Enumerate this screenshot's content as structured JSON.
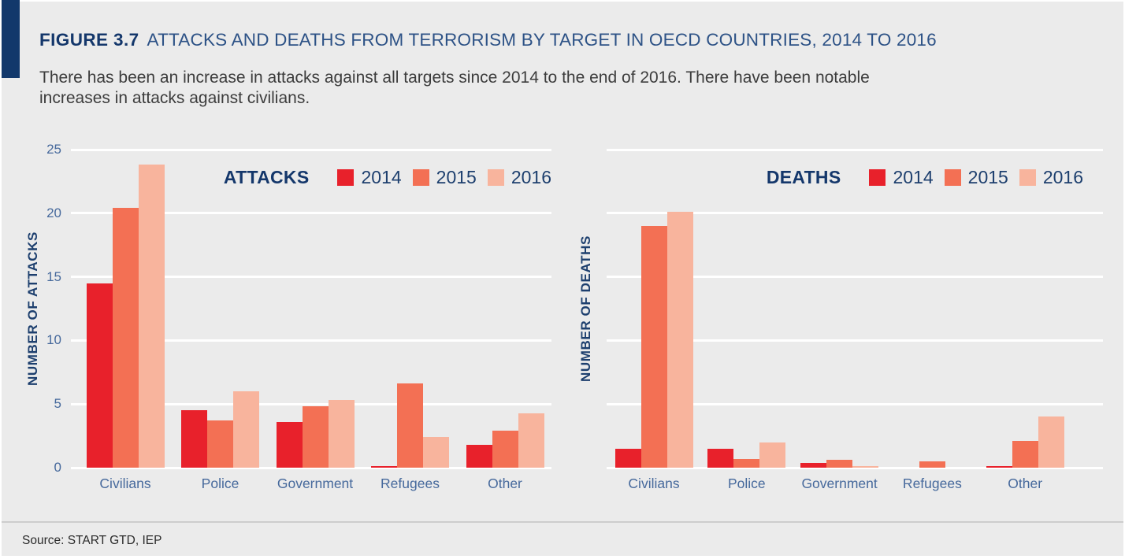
{
  "header": {
    "figure_label": "FIGURE 3.7",
    "title": "ATTACKS AND DEATHS FROM TERRORISM BY TARGET IN OECD COUNTRIES, 2014 TO 2016",
    "subtitle": "There has been an increase in attacks against all targets since 2014 to the end of 2016. There have been notable\nincreases in attacks against civilians."
  },
  "footer": {
    "source": "Source: START GTD, IEP"
  },
  "colors": {
    "accent_bar": "#12386b",
    "navy_text": "#14376b",
    "axis_blue": "#46699c",
    "gridline": "#ffffff",
    "background": "#ebebeb",
    "year2014": "#e8212b",
    "year2015": "#f37054",
    "year2016": "#f8b49d"
  },
  "chart_data": [
    {
      "type": "bar",
      "title": "ATTACKS",
      "ylabel": "NUMBER OF ATTACKS",
      "ylim": [
        0,
        25
      ],
      "yticks": [
        0,
        5,
        10,
        15,
        20,
        25
      ],
      "show_ytick_labels": true,
      "grid": true,
      "legend_position": "top-right",
      "categories": [
        "Civilians",
        "Police",
        "Government",
        "Refugees",
        "Other"
      ],
      "series": [
        {
          "name": "2014",
          "color": "#e8212b",
          "values": [
            14.5,
            4.5,
            3.6,
            0.1,
            1.8
          ]
        },
        {
          "name": "2015",
          "color": "#f37054",
          "values": [
            20.4,
            3.7,
            4.8,
            6.6,
            2.9
          ]
        },
        {
          "name": "2016",
          "color": "#f8b49d",
          "values": [
            23.8,
            6.0,
            5.3,
            2.4,
            4.3
          ]
        }
      ]
    },
    {
      "type": "bar",
      "title": "DEATHS",
      "ylabel": "NUMBER OF DEATHS",
      "ylim": [
        0,
        25
      ],
      "yticks": [
        0,
        5,
        10,
        15,
        20,
        25
      ],
      "show_ytick_labels": false,
      "grid": true,
      "legend_position": "top-right",
      "categories": [
        "Civilians",
        "Police",
        "Government",
        "Refugees",
        "Other"
      ],
      "series": [
        {
          "name": "2014",
          "color": "#e8212b",
          "values": [
            1.5,
            1.5,
            0.4,
            0,
            0.1
          ]
        },
        {
          "name": "2015",
          "color": "#f37054",
          "values": [
            19.0,
            0.7,
            0.6,
            0.5,
            2.1
          ]
        },
        {
          "name": "2016",
          "color": "#f8b49d",
          "values": [
            20.1,
            2.0,
            0.1,
            0,
            4.0
          ]
        }
      ]
    }
  ]
}
